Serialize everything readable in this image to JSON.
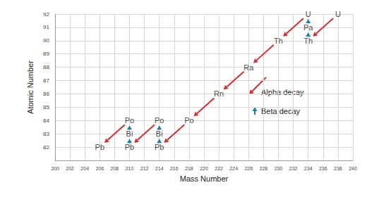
{
  "chart_data": {
    "type": "scatter",
    "x_label": "Mass Number",
    "y_label": "Atomic Number",
    "xlim": [
      200,
      240
    ],
    "xticks": [
      200,
      202,
      204,
      206,
      208,
      210,
      212,
      214,
      216,
      218,
      220,
      222,
      224,
      226,
      228,
      230,
      232,
      234,
      236,
      238,
      240
    ],
    "ylim": [
      81,
      92
    ],
    "yticks": [
      82,
      83,
      84,
      85,
      86,
      87,
      88,
      89,
      90,
      91,
      92
    ],
    "grid": true,
    "legend": "right",
    "nuclides": [
      {
        "label": "U",
        "x": 238,
        "y": 92
      },
      {
        "label": "Th",
        "x": 234,
        "y": 90
      },
      {
        "label": "Pa",
        "x": 234,
        "y": 91
      },
      {
        "label": "U",
        "x": 234,
        "y": 92
      },
      {
        "label": "Th",
        "x": 230,
        "y": 90
      },
      {
        "label": "Ra",
        "x": 226,
        "y": 88
      },
      {
        "label": "Rn",
        "x": 222,
        "y": 86
      },
      {
        "label": "Po",
        "x": 218,
        "y": 84
      },
      {
        "label": "Pb",
        "x": 214,
        "y": 82
      },
      {
        "label": "Bi",
        "x": 214,
        "y": 83
      },
      {
        "label": "Po",
        "x": 214,
        "y": 84
      },
      {
        "label": "Pb",
        "x": 210,
        "y": 82
      },
      {
        "label": "Bi",
        "x": 210,
        "y": 83
      },
      {
        "label": "Po",
        "x": 210,
        "y": 84
      },
      {
        "label": "Pb",
        "x": 206,
        "y": 82
      }
    ],
    "series": [
      {
        "name": "Alpha decay",
        "type": "arrow",
        "color": "#d32f2f",
        "values": [
          [
            238,
            92,
            234,
            90
          ],
          [
            234,
            92,
            230,
            90
          ],
          [
            230,
            90,
            226,
            88
          ],
          [
            226,
            88,
            222,
            86
          ],
          [
            222,
            86,
            218,
            84
          ],
          [
            218,
            84,
            214,
            82
          ],
          [
            214,
            84,
            210,
            82
          ],
          [
            210,
            84,
            206,
            82
          ]
        ]
      },
      {
        "name": "Beta decay",
        "type": "arrow",
        "color": "#1d7ea6",
        "values": [
          [
            234,
            90,
            234,
            91
          ],
          [
            234,
            91,
            234,
            92
          ],
          [
            214,
            82,
            214,
            83
          ],
          [
            214,
            83,
            214,
            84
          ],
          [
            210,
            82,
            210,
            83
          ],
          [
            210,
            83,
            210,
            84
          ]
        ]
      }
    ]
  }
}
